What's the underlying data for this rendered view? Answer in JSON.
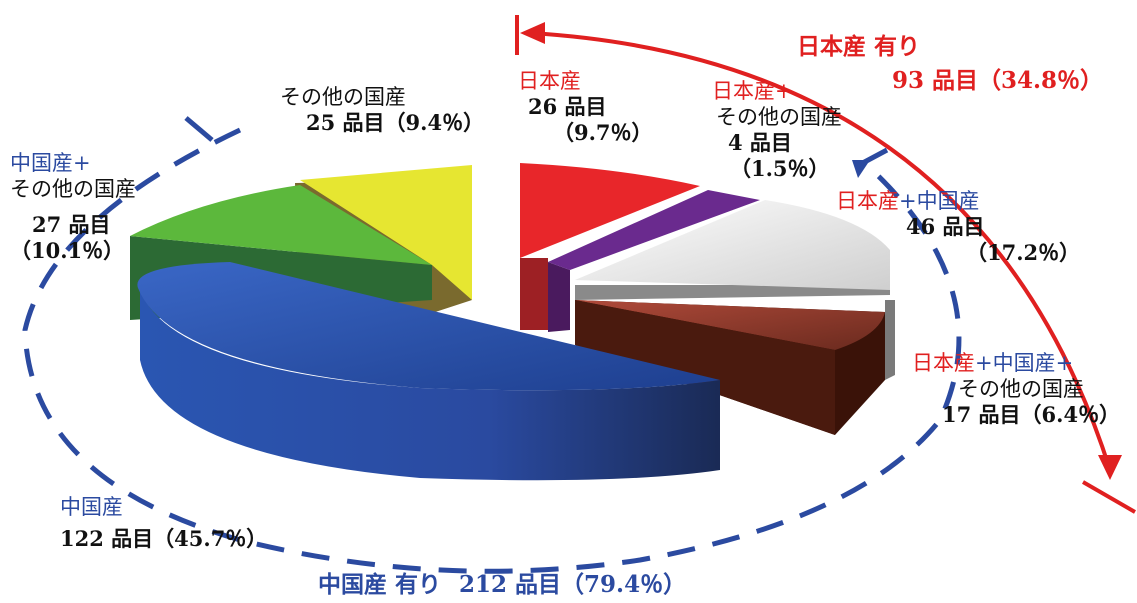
{
  "chart_data": {
    "type": "pie",
    "slices": [
      {
        "label_parts": [
          {
            "t": "日本産",
            "c": "red"
          }
        ],
        "count": "26 品目",
        "pct": "（9.7％）",
        "value": 9.7,
        "color": "#e8262a"
      },
      {
        "label_parts": [
          {
            "t": "日本産+",
            "c": "red"
          },
          {
            "t": "その他の国産",
            "c": "black"
          }
        ],
        "count": "4 品目",
        "pct": "（1.5％）",
        "value": 1.5,
        "color": "#6a2a8e"
      },
      {
        "label_parts": [
          {
            "t": "日本産",
            "c": "red"
          },
          {
            "t": "+中国産",
            "c": "blue"
          }
        ],
        "count": "46 品目",
        "pct": "（17.2％）",
        "value": 17.2,
        "color": "#e4e4e4"
      },
      {
        "label_parts": [
          {
            "t": "日本産",
            "c": "red"
          },
          {
            "t": "+中国産+",
            "c": "blue"
          },
          {
            "t": "その他の国産",
            "c": "black"
          }
        ],
        "count": "17 品目",
        "pct": "（6.4％）",
        "value": 6.4,
        "color": "#5a1d10"
      },
      {
        "label_parts": [
          {
            "t": "中国産",
            "c": "blue"
          }
        ],
        "count": "122 品目",
        "pct": "（45.7％）",
        "value": 45.7,
        "color": "#2f5bb5"
      },
      {
        "label_parts": [
          {
            "t": "中国産+",
            "c": "blue"
          },
          {
            "t": "その他の国産",
            "c": "black"
          }
        ],
        "count": "27 品目",
        "pct": "（10.1％）",
        "value": 10.1,
        "color": "#5cb83c"
      },
      {
        "label_parts": [
          {
            "t": "その他の国産",
            "c": "black"
          }
        ],
        "count": "25 品目",
        "pct": "（9.4％）",
        "value": 9.4,
        "color": "#e6e631"
      }
    ],
    "callouts": {
      "japan": {
        "title": "日本産 有り",
        "detail": "93 品目（34.8％）",
        "color": "#e02020"
      },
      "china": {
        "title": "中国産 有り",
        "detail": "212 品目（79.4％）",
        "color": "#2b4aa0"
      }
    }
  }
}
